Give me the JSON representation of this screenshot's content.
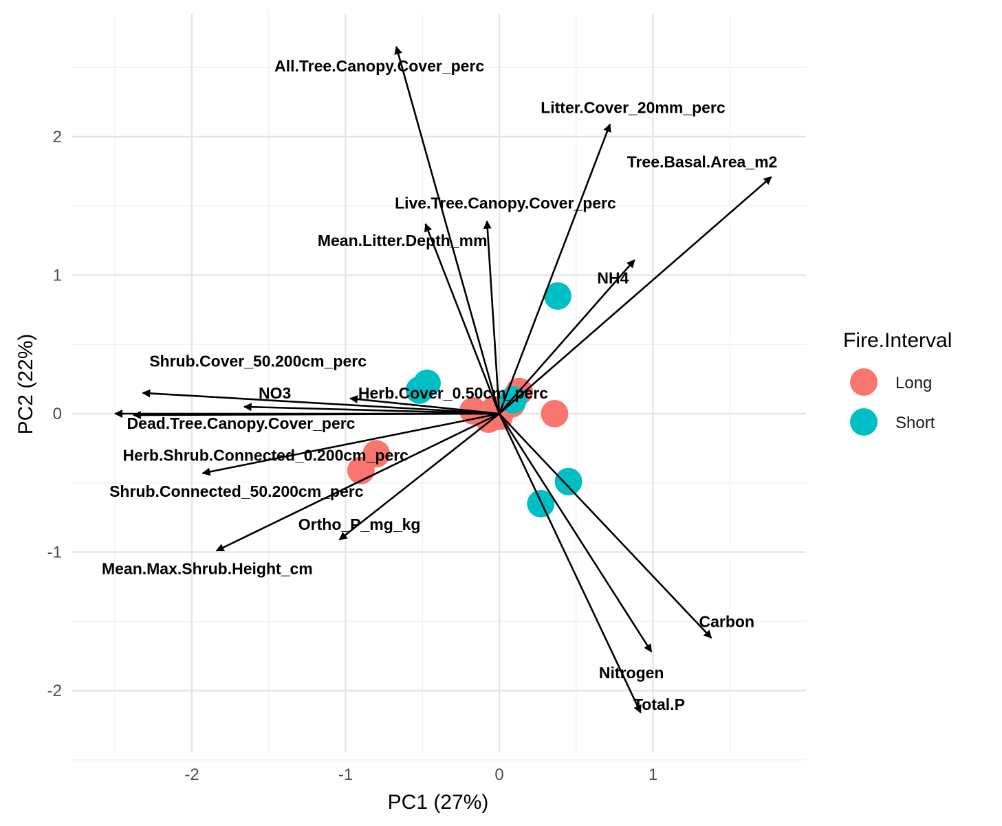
{
  "chart_data": {
    "type": "scatter",
    "subtype": "pca-biplot",
    "title": "",
    "xlabel": "PC1 (27%)",
    "ylabel": "PC2 (22%)",
    "xlim": [
      -2.6,
      2.0
    ],
    "ylim": [
      -2.45,
      2.6
    ],
    "x_ticks": [
      -2,
      -1,
      0,
      1
    ],
    "y_ticks": [
      -2,
      -1,
      0,
      1,
      2
    ],
    "x_tick_labels": [
      "-2",
      "-1",
      "0",
      "1"
    ],
    "y_tick_labels": [
      "-2",
      "-1",
      "0",
      "1",
      "2"
    ],
    "grid": true,
    "legend": {
      "title": "Fire.Interval",
      "position": "right",
      "entries": [
        {
          "name": "Long",
          "color": "#F8766D"
        },
        {
          "name": "Short",
          "color": "#00BFC4"
        }
      ]
    },
    "series": [
      {
        "name": "Long",
        "color": "#F8766D",
        "points": [
          {
            "x": 0.13,
            "y": 0.16
          },
          {
            "x": 0.08,
            "y": 0.07
          },
          {
            "x": -0.17,
            "y": 0.02
          },
          {
            "x": -0.03,
            "y": 0.03
          },
          {
            "x": 0.0,
            "y": -0.02
          },
          {
            "x": -0.07,
            "y": -0.04
          },
          {
            "x": 0.36,
            "y": 0.0
          },
          {
            "x": -0.8,
            "y": -0.29
          },
          {
            "x": -0.9,
            "y": -0.41
          }
        ]
      },
      {
        "name": "Short",
        "color": "#00BFC4",
        "points": [
          {
            "x": 0.38,
            "y": 0.85
          },
          {
            "x": -0.47,
            "y": 0.22
          },
          {
            "x": -0.52,
            "y": 0.17
          },
          {
            "x": 0.09,
            "y": 0.1
          },
          {
            "x": 0.45,
            "y": -0.49
          },
          {
            "x": 0.27,
            "y": -0.65
          }
        ]
      }
    ],
    "loadings": [
      {
        "name": "All.Tree.Canopy.Cover_perc",
        "x": -0.67,
        "y": 2.65,
        "lx": -0.78,
        "ly": 2.51
      },
      {
        "name": "Litter.Cover_20mm_perc",
        "x": 0.72,
        "y": 2.09,
        "lx": 0.87,
        "ly": 2.21
      },
      {
        "name": "Tree.Basal.Area_m2",
        "x": 1.77,
        "y": 1.71,
        "lx": 1.32,
        "ly": 1.82
      },
      {
        "name": "Live.Tree.Canopy.Cover_perc",
        "x": -0.08,
        "y": 1.39,
        "lx": 0.04,
        "ly": 1.52
      },
      {
        "name": "Mean.Litter.Depth_mm",
        "x": -0.48,
        "y": 1.37,
        "lx": -0.63,
        "ly": 1.25
      },
      {
        "name": "NH4",
        "x": 0.88,
        "y": 1.11,
        "lx": 0.74,
        "ly": 0.98
      },
      {
        "name": "Shrub.Cover_50.200cm_perc",
        "x": -2.32,
        "y": 0.15,
        "lx": -1.57,
        "ly": 0.38
      },
      {
        "name": "NO3",
        "x": -1.66,
        "y": 0.05,
        "lx": -1.46,
        "ly": 0.15
      },
      {
        "name": "Herb.Cover_0.50cm_perc",
        "x": -0.97,
        "y": 0.11,
        "lx": -0.3,
        "ly": 0.15
      },
      {
        "name": "Dead.Tree.Canopy.Cover_perc",
        "x": -2.5,
        "y": 0.0,
        "lx": -1.68,
        "ly": -0.07
      },
      {
        "name": "Herb.Shrub.Connected_0.200cm_perc",
        "x": -2.38,
        "y": -0.01,
        "lx": -1.52,
        "ly": -0.3
      },
      {
        "name": "Shrub.Connected_50.200cm_perc",
        "x": -1.93,
        "y": -0.43,
        "lx": -1.71,
        "ly": -0.56
      },
      {
        "name": "Ortho_P_mg_kg",
        "x": -1.04,
        "y": -0.91,
        "lx": -0.91,
        "ly": -0.8
      },
      {
        "name": "Mean.Max.Shrub.Height_cm",
        "x": -1.84,
        "y": -0.99,
        "lx": -1.9,
        "ly": -1.12
      },
      {
        "name": "Carbon",
        "x": 1.38,
        "y": -1.62,
        "lx": 1.48,
        "ly": -1.5
      },
      {
        "name": "Nitrogen",
        "x": 0.99,
        "y": -1.72,
        "lx": 0.86,
        "ly": -1.87
      },
      {
        "name": "Total.P",
        "x": 0.92,
        "y": -2.16,
        "lx": 1.04,
        "ly": -2.1
      }
    ]
  }
}
